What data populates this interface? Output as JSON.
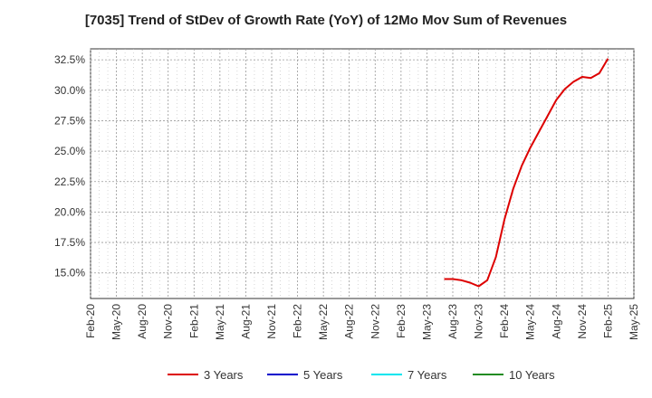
{
  "chart_data": {
    "type": "line",
    "title": "[7035]  Trend of StDev of Growth Rate (YoY) of 12Mo Mov Sum of Revenues",
    "xlabel": "",
    "ylabel": "",
    "x_ticks": [
      "Feb-20",
      "May-20",
      "Aug-20",
      "Nov-20",
      "Feb-21",
      "May-21",
      "Aug-21",
      "Nov-21",
      "Feb-22",
      "May-22",
      "Aug-22",
      "Nov-22",
      "Feb-23",
      "May-23",
      "Aug-23",
      "Nov-23",
      "Feb-24",
      "May-24",
      "Aug-24",
      "Nov-24",
      "Feb-25",
      "May-25"
    ],
    "y_ticks": [
      "15.0%",
      "17.5%",
      "20.0%",
      "22.5%",
      "25.0%",
      "27.5%",
      "30.0%",
      "32.5%"
    ],
    "y_tick_values": [
      15.0,
      17.5,
      20.0,
      22.5,
      25.0,
      27.5,
      30.0,
      32.5
    ],
    "ylim": [
      12.9,
      33.4
    ],
    "grid": true,
    "series": [
      {
        "name": "3 Years",
        "color": "#dd0000",
        "x": [
          "Jul-23",
          "Aug-23",
          "Sep-23",
          "Oct-23",
          "Nov-23",
          "Dec-23",
          "Jan-24",
          "Feb-24",
          "Mar-24",
          "Apr-24",
          "May-24",
          "Jun-24",
          "Jul-24",
          "Aug-24",
          "Sep-24",
          "Oct-24",
          "Nov-24",
          "Dec-24",
          "Jan-25",
          "Feb-25"
        ],
        "values": [
          14.5,
          14.5,
          14.4,
          14.2,
          13.9,
          14.4,
          16.3,
          19.4,
          21.9,
          23.8,
          25.3,
          26.6,
          27.9,
          29.2,
          30.1,
          30.7,
          31.1,
          31.0,
          31.4,
          32.6
        ]
      },
      {
        "name": "5 Years",
        "color": "#0000cc",
        "x": [],
        "values": []
      },
      {
        "name": "7 Years",
        "color": "#00e5ee",
        "x": [],
        "values": []
      },
      {
        "name": "10 Years",
        "color": "#228b22",
        "x": [],
        "values": []
      }
    ],
    "legend_position": "bottom"
  }
}
